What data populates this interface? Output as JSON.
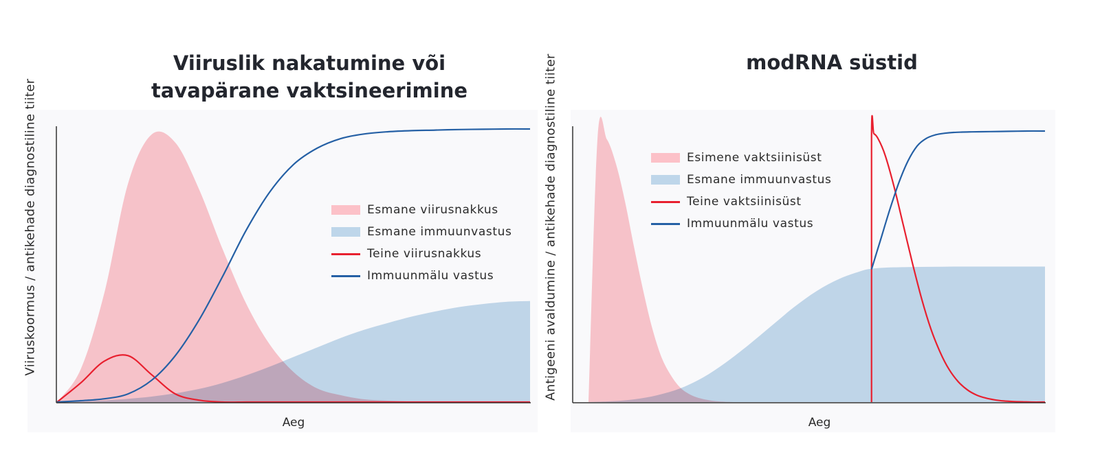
{
  "chart_data": [
    {
      "type": "area",
      "title": [
        "Viiruslik nakatumine või",
        "tavapärane vaktsineerimine"
      ],
      "xlabel": "Aeg",
      "ylabel": "Viiruskoormus / antikehade diagnostiline tiiter",
      "xlim": [
        0,
        100
      ],
      "ylim": [
        0,
        100
      ],
      "grid": false,
      "legend_position": "center-right",
      "x": [
        0,
        5,
        10,
        15,
        20,
        25,
        30,
        35,
        40,
        45,
        50,
        55,
        60,
        65,
        70,
        75,
        80,
        85,
        90,
        95,
        100
      ],
      "series": [
        {
          "name": "Esmane viirusnakkus",
          "style": "fill",
          "color": "#fcc1c8",
          "values": [
            0,
            12,
            40,
            80,
            98,
            95,
            78,
            56,
            36,
            21,
            11,
            5,
            2.5,
            1,
            0.5,
            0.2,
            0,
            0,
            0,
            0,
            0
          ]
        },
        {
          "name": "Esmane immuunvastus",
          "style": "fill",
          "color": "#bed6ea",
          "values": [
            0,
            0.2,
            0.6,
            1.2,
            2,
            3.2,
            4.8,
            7,
            9.8,
            13,
            16.5,
            20,
            23.5,
            26.5,
            29,
            31.3,
            33.2,
            34.8,
            35.9,
            36.7,
            37
          ]
        },
        {
          "name": "Teine viirusnakkus",
          "style": "line",
          "color": "#e8202f",
          "values": [
            0,
            7,
            15,
            17,
            10,
            3,
            0.7,
            0,
            0,
            0,
            0,
            0,
            0,
            0,
            0,
            0,
            0,
            0,
            0,
            0,
            0
          ]
        },
        {
          "name": "Immuunmälu vastus",
          "style": "line",
          "color": "#2560a5",
          "values": [
            0,
            0.5,
            1.2,
            3,
            8,
            17,
            30,
            46,
            63,
            77,
            87,
            93,
            96.5,
            98.2,
            99,
            99.4,
            99.6,
            99.8,
            99.9,
            100,
            100
          ]
        }
      ]
    },
    {
      "type": "area",
      "title": [
        "modRNA süstid"
      ],
      "xlabel": "Aeg",
      "ylabel": "Antigeeni avaldumine / antikehade diagnostiline tiiter",
      "xlim": [
        0,
        100
      ],
      "ylim": [
        0,
        100
      ],
      "grid": false,
      "legend_position": "top-left",
      "series": [
        {
          "name": "Esimene vaktsiinisüst",
          "style": "fill",
          "color": "#fcc1c8",
          "x": [
            0,
            2,
            4,
            6,
            8,
            10,
            12,
            14,
            16,
            18,
            20,
            22,
            24,
            26,
            28,
            30,
            32
          ],
          "values": [
            0,
            98,
            97,
            88,
            74,
            57,
            41,
            27,
            16.5,
            10,
            5.5,
            3,
            1.6,
            0.8,
            0.3,
            0.1,
            0
          ]
        },
        {
          "name": "Esmane immuunvastus",
          "style": "fill",
          "color": "#bed6ea",
          "x": [
            0,
            5,
            10,
            15,
            20,
            25,
            30,
            35,
            40,
            45,
            50,
            55,
            60,
            62,
            65,
            70,
            75,
            80,
            85,
            90,
            95,
            100
          ],
          "values": [
            0,
            0.3,
            1,
            2.5,
            5,
            9,
            14.5,
            21,
            28,
            35,
            41,
            45.5,
            48.5,
            49.2,
            49.6,
            49.8,
            49.9,
            50,
            50,
            50,
            50,
            50
          ]
        },
        {
          "name": "Teine vaktsiinisüst",
          "style": "line",
          "color": "#e8202f",
          "x": [
            62,
            62.01,
            62.5,
            63.5,
            65,
            67,
            69,
            71,
            73,
            75,
            77,
            79,
            81,
            83,
            85,
            87,
            89,
            91,
            93,
            95,
            97,
            100
          ],
          "values": [
            0,
            98,
            99,
            97,
            91,
            79,
            65,
            51,
            38,
            27,
            18.5,
            12,
            7.5,
            4.5,
            2.6,
            1.5,
            0.8,
            0.4,
            0.2,
            0.1,
            0,
            0
          ]
        },
        {
          "name": "Immuunmälu vastus",
          "style": "line",
          "color": "#2560a5",
          "x": [
            62,
            64,
            66,
            68,
            70,
            72,
            74,
            76,
            78,
            80,
            84,
            88,
            92,
            96,
            100
          ],
          "values": [
            49,
            60,
            71,
            81,
            89,
            94.5,
            97.3,
            98.6,
            99.2,
            99.5,
            99.7,
            99.8,
            99.9,
            100,
            100
          ]
        }
      ]
    }
  ]
}
